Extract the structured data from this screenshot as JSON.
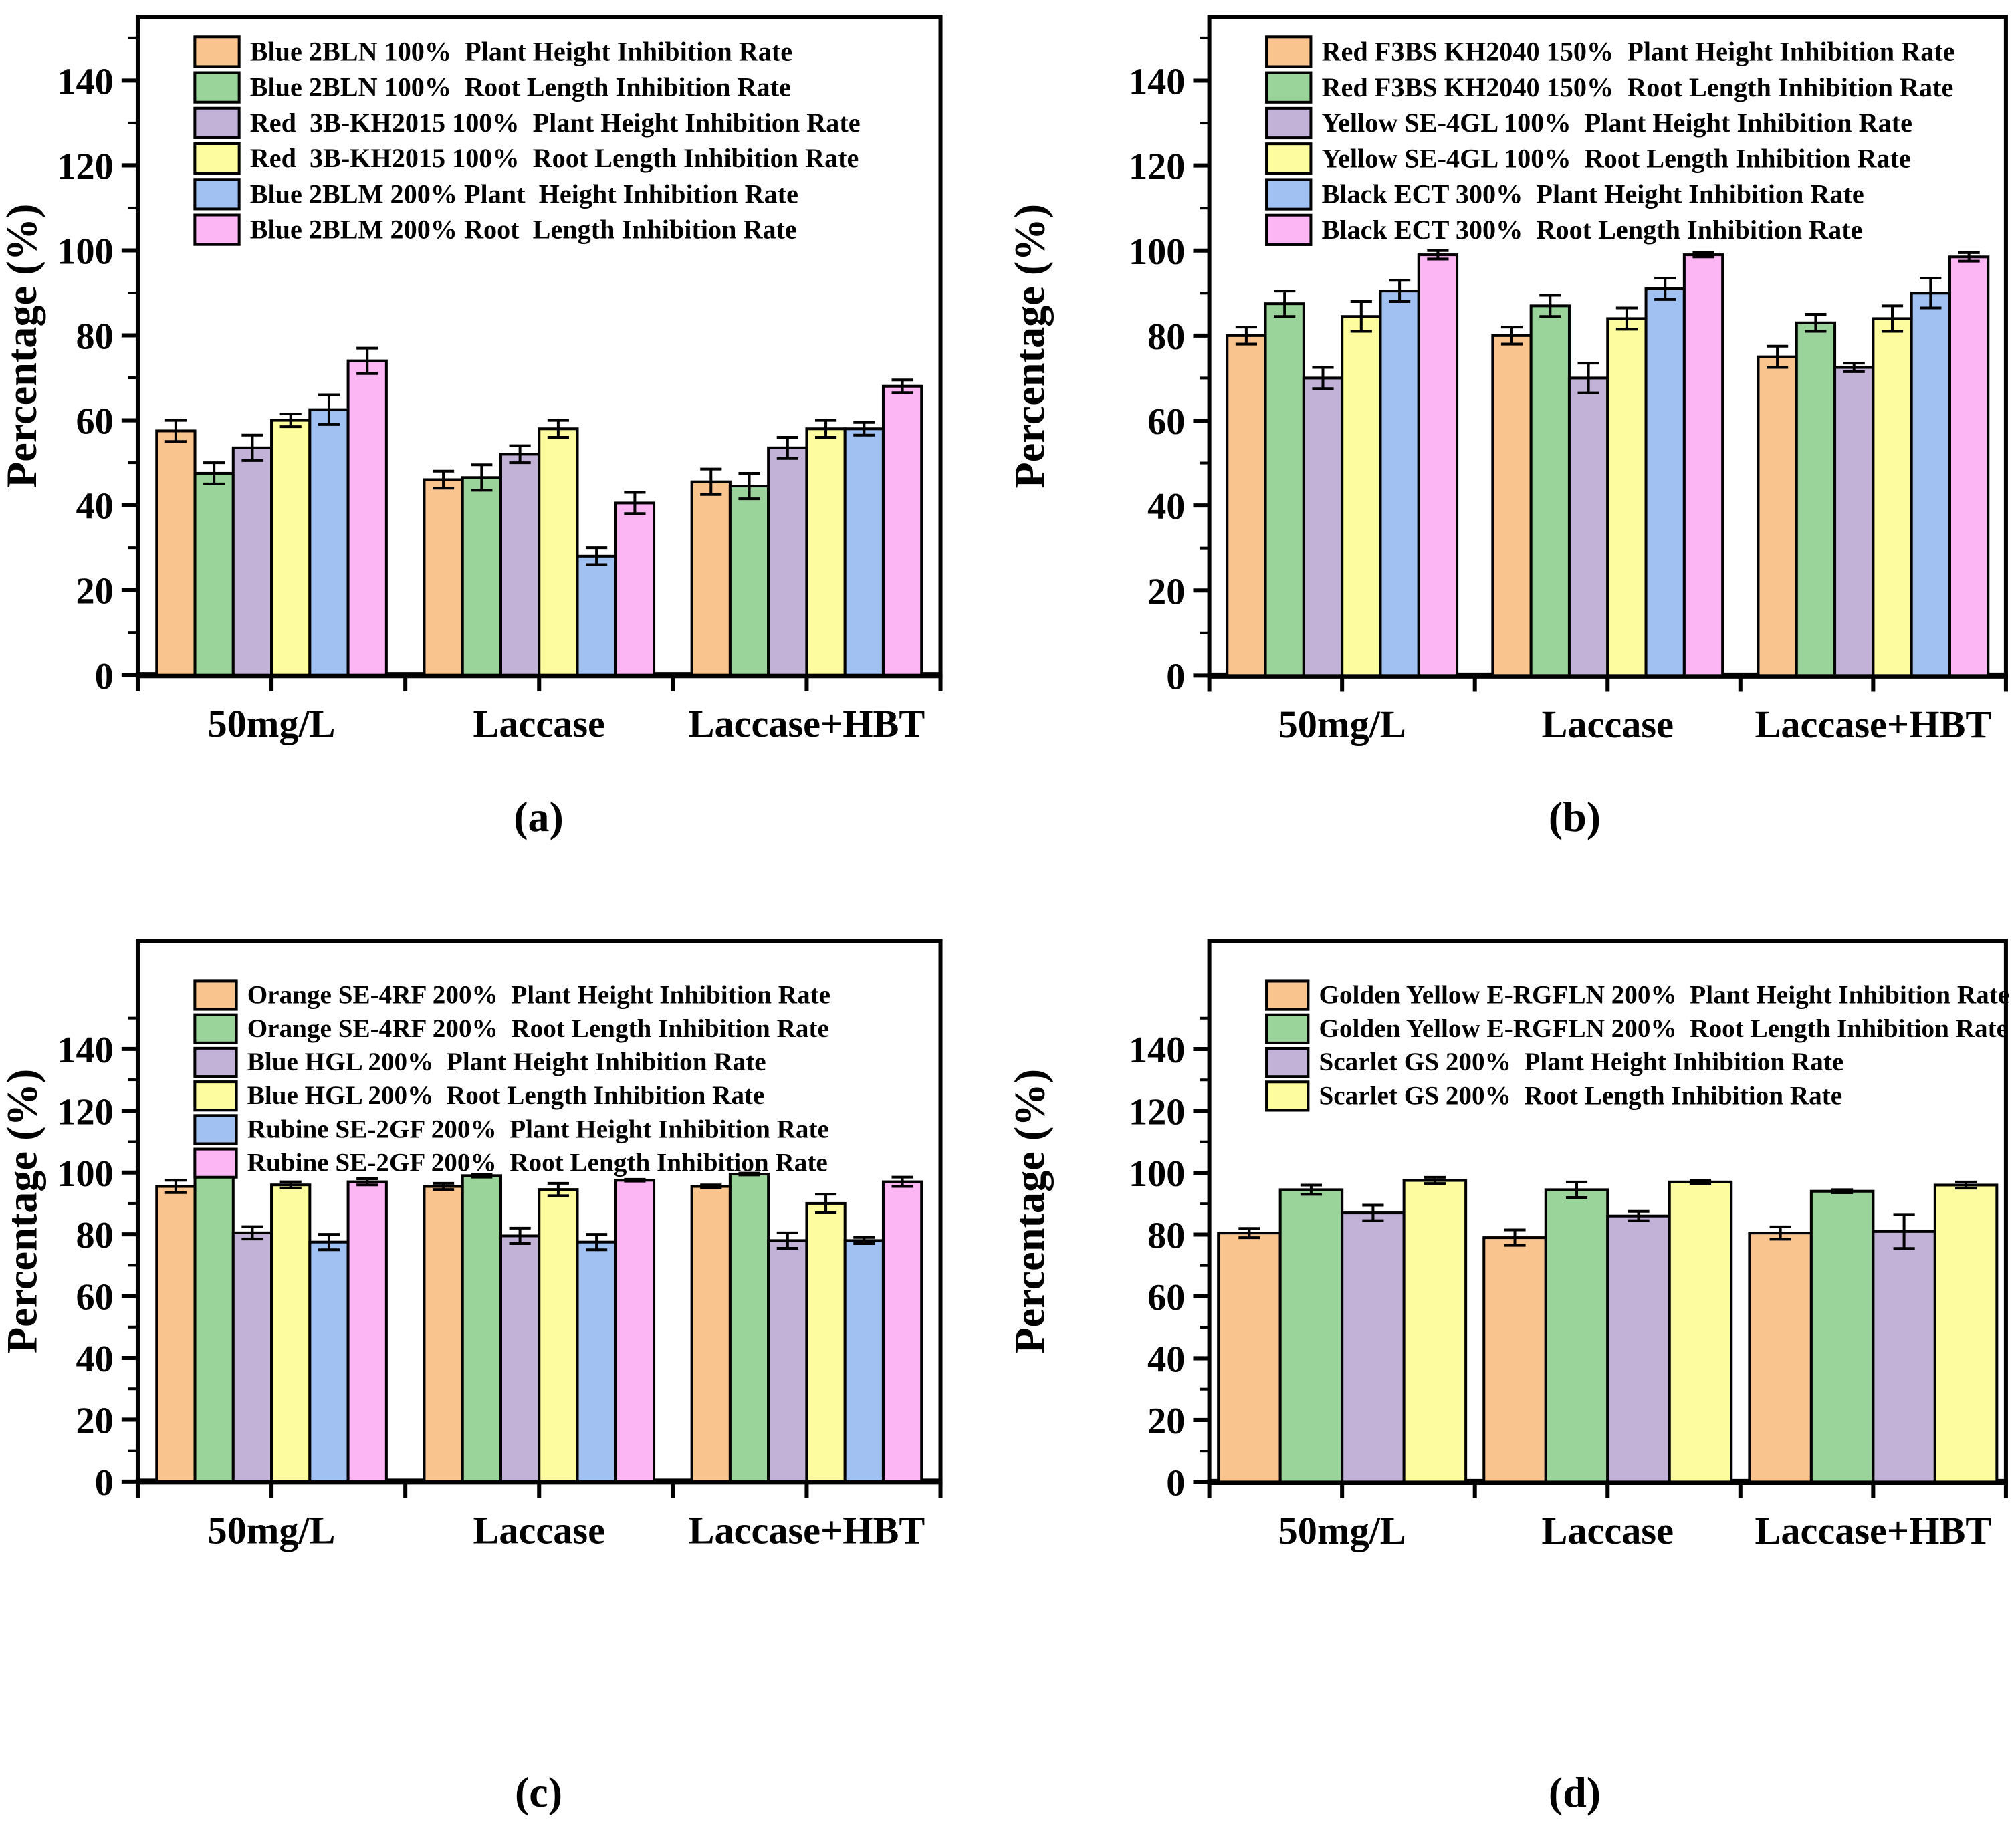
{
  "figure_title": "",
  "axis_color": "#000000",
  "palette": {
    "orange": "#F9C48E",
    "green": "#9BD49B",
    "purple": "#C2B2D8",
    "yellow": "#FDFDA0",
    "blue": "#A0C1F1",
    "pink": "#FCB6F4"
  },
  "chart_data": [
    {
      "type": "bar",
      "panel_label": "(a)",
      "ylabel": "Percentage (%)",
      "categories": [
        "50mg/L",
        "Laccase",
        "Laccase+HBT"
      ],
      "ylim": [
        0,
        155
      ],
      "yticks": [
        0,
        20,
        40,
        60,
        80,
        100,
        120,
        140
      ],
      "grid": false,
      "legend_position": "top-left-inside",
      "error_bars": true,
      "series": [
        {
          "name": "Blue 2BLN 100%  Plant Height Inhibition Rate",
          "color": "#F9C48E",
          "values": [
            57.5,
            46,
            45.5
          ],
          "errors": [
            2.5,
            2,
            3
          ]
        },
        {
          "name": "Blue 2BLN 100%  Root Length Inhibition Rate",
          "color": "#9BD49B",
          "values": [
            47.5,
            46.5,
            44.5
          ],
          "errors": [
            2.5,
            3,
            3
          ]
        },
        {
          "name": "Red  3B-KH2015 100%  Plant Height Inhibition Rate",
          "color": "#C2B2D8",
          "values": [
            53.5,
            52,
            53.5
          ],
          "errors": [
            3,
            2,
            2.5
          ]
        },
        {
          "name": "Red  3B-KH2015 100%  Root Length Inhibition Rate",
          "color": "#FDFDA0",
          "values": [
            60,
            58,
            58
          ],
          "errors": [
            1.5,
            2,
            2
          ]
        },
        {
          "name": "Blue 2BLM 200% Plant  Height Inhibition Rate",
          "color": "#A0C1F1",
          "values": [
            62.5,
            28,
            58
          ],
          "errors": [
            3.5,
            2,
            1.5
          ]
        },
        {
          "name": "Blue 2BLM 200% Root  Length Inhibition Rate",
          "color": "#FCB6F4",
          "values": [
            74,
            40.5,
            68
          ],
          "errors": [
            3,
            2.5,
            1.5
          ]
        }
      ]
    },
    {
      "type": "bar",
      "panel_label": "(b)",
      "ylabel": "Percentage (%)",
      "categories": [
        "50mg/L",
        "Laccase",
        "Laccase+HBT"
      ],
      "ylim": [
        0,
        155
      ],
      "yticks": [
        0,
        20,
        40,
        60,
        80,
        100,
        120,
        140
      ],
      "grid": false,
      "legend_position": "top-left-inside",
      "error_bars": true,
      "series": [
        {
          "name": "Red F3BS KH2040 150%  Plant Height Inhibition Rate",
          "color": "#F9C48E",
          "values": [
            80,
            80,
            75
          ],
          "errors": [
            2,
            2,
            2.5
          ]
        },
        {
          "name": "Red F3BS KH2040 150%  Root Length Inhibition Rate",
          "color": "#9BD49B",
          "values": [
            87.5,
            87,
            83
          ],
          "errors": [
            3,
            2.5,
            2
          ]
        },
        {
          "name": "Yellow SE-4GL 100%  Plant Height Inhibition Rate",
          "color": "#C2B2D8",
          "values": [
            70,
            70,
            72.5
          ],
          "errors": [
            2.5,
            3.5,
            1
          ]
        },
        {
          "name": "Yellow SE-4GL 100%  Root Length Inhibition Rate",
          "color": "#FDFDA0",
          "values": [
            84.5,
            84,
            84
          ],
          "errors": [
            3.5,
            2.5,
            3
          ]
        },
        {
          "name": "Black ECT 300%  Plant Height Inhibition Rate",
          "color": "#A0C1F1",
          "values": [
            90.5,
            91,
            90
          ],
          "errors": [
            2.5,
            2.5,
            3.5
          ]
        },
        {
          "name": "Black ECT 300%  Root Length Inhibition Rate",
          "color": "#FCB6F4",
          "values": [
            99,
            99,
            98.5
          ],
          "errors": [
            1,
            0.5,
            1
          ]
        }
      ]
    },
    {
      "type": "bar",
      "panel_label": "(c)",
      "ylabel": "Percentage (%)",
      "categories": [
        "50mg/L",
        "Laccase",
        "Laccase+HBT"
      ],
      "ylim": [
        0,
        175
      ],
      "yticks": [
        0,
        20,
        40,
        60,
        80,
        100,
        120,
        140
      ],
      "grid": false,
      "legend_position": "top-left-inside",
      "error_bars": true,
      "series": [
        {
          "name": "Orange SE-4RF 200%  Plant Height Inhibition Rate",
          "color": "#F9C48E",
          "values": [
            95.5,
            95.5,
            95.5
          ],
          "errors": [
            2,
            1,
            0.5
          ]
        },
        {
          "name": "Orange SE-4RF 200%  Root Length Inhibition Rate",
          "color": "#9BD49B",
          "values": [
            99.5,
            99,
            99.5
          ],
          "errors": [
            0.5,
            0.5,
            0.3
          ]
        },
        {
          "name": "Blue HGL 200%  Plant Height Inhibition Rate",
          "color": "#C2B2D8",
          "values": [
            80.5,
            79.5,
            78
          ],
          "errors": [
            2,
            2.5,
            2.5
          ]
        },
        {
          "name": "Blue HGL 200%  Root Length Inhibition Rate",
          "color": "#FDFDA0",
          "values": [
            96,
            94.5,
            90
          ],
          "errors": [
            1,
            2,
            3
          ]
        },
        {
          "name": "Rubine SE-2GF 200%  Plant Height Inhibition Rate",
          "color": "#A0C1F1",
          "values": [
            77.5,
            77.5,
            78
          ],
          "errors": [
            2.5,
            2.5,
            1
          ]
        },
        {
          "name": "Rubine SE-2GF 200%  Root Length Inhibition Rate",
          "color": "#FCB6F4",
          "values": [
            97,
            97.5,
            97
          ],
          "errors": [
            1,
            0.3,
            1.5
          ]
        }
      ]
    },
    {
      "type": "bar",
      "panel_label": "(d)",
      "ylabel": "Percentage (%)",
      "categories": [
        "50mg/L",
        "Laccase",
        "Laccase+HBT"
      ],
      "ylim": [
        0,
        175
      ],
      "yticks": [
        0,
        20,
        40,
        60,
        80,
        100,
        120,
        140
      ],
      "grid": false,
      "legend_position": "top-left-inside",
      "error_bars": true,
      "series": [
        {
          "name": "Golden Yellow E-RGFLN 200%  Plant Height Inhibition Rate",
          "color": "#F9C48E",
          "values": [
            80.5,
            79,
            80.5
          ],
          "errors": [
            1.5,
            2.5,
            2
          ]
        },
        {
          "name": "Golden Yellow E-RGFLN 200%  Root Length Inhibition Rate",
          "color": "#9BD49B",
          "values": [
            94.5,
            94.5,
            94
          ],
          "errors": [
            1.5,
            2.5,
            0.5
          ]
        },
        {
          "name": "Scarlet GS 200%  Plant Height Inhibition Rate",
          "color": "#C2B2D8",
          "values": [
            87,
            86,
            81
          ],
          "errors": [
            2.5,
            1.5,
            5.5
          ]
        },
        {
          "name": "Scarlet GS 200%  Root Length Inhibition Rate",
          "color": "#FDFDA0",
          "values": [
            97.5,
            97,
            96
          ],
          "errors": [
            1,
            0.5,
            1
          ]
        }
      ]
    }
  ]
}
